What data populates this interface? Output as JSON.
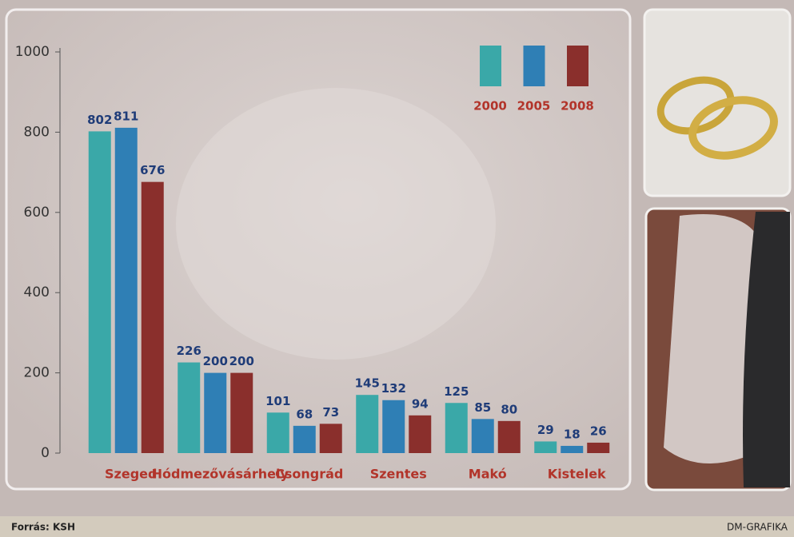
{
  "chart_data": {
    "type": "bar",
    "categories": [
      "Szeged",
      "Hódmezővásárhely",
      "Csongrád",
      "Szentes",
      "Makó",
      "Kistelek"
    ],
    "series": [
      {
        "name": "2000",
        "color": "#3aa8a8",
        "values": [
          802,
          226,
          101,
          145,
          125,
          29
        ]
      },
      {
        "name": "2005",
        "color": "#2f7fb5",
        "values": [
          811,
          200,
          68,
          132,
          85,
          18
        ]
      },
      {
        "name": "2008",
        "color": "#8a2f2c",
        "values": [
          676,
          200,
          73,
          94,
          80,
          26
        ]
      }
    ],
    "ylim": [
      0,
      1000
    ],
    "yticks": [
      0,
      200,
      400,
      600,
      800,
      1000
    ],
    "source": "Forrás: KSH",
    "credit": "DM-GRAFIKA"
  }
}
